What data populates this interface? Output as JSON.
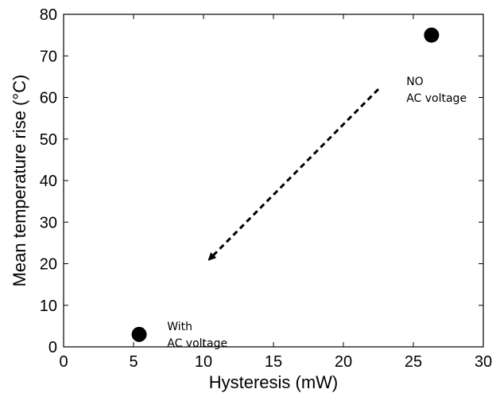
{
  "chart_data": {
    "type": "scatter",
    "title": "",
    "xlabel": "Hysteresis (mW)",
    "ylabel": "Mean temperature rise (°C)",
    "xlim": [
      0,
      30
    ],
    "ylim": [
      0,
      80
    ],
    "xticks": [
      0,
      5,
      10,
      15,
      20,
      25,
      30
    ],
    "yticks": [
      0,
      10,
      20,
      30,
      40,
      50,
      60,
      70,
      80
    ],
    "grid": false,
    "series": [
      {
        "points": [
          {
            "x": 5.4,
            "y": 3
          },
          {
            "x": 26.3,
            "y": 75
          }
        ]
      }
    ],
    "annotations": [
      {
        "text": [
          "NO",
          "AC voltage"
        ],
        "x": 24.5,
        "y": 63
      },
      {
        "text": [
          "With",
          "AC voltage"
        ],
        "x": 7.4,
        "y": 4
      }
    ],
    "arrow": {
      "from": [
        22.5,
        62
      ],
      "to": [
        10.4,
        21
      ],
      "style": "dashed"
    },
    "colors": {
      "marker": "#000000",
      "axis": "#000000"
    }
  }
}
